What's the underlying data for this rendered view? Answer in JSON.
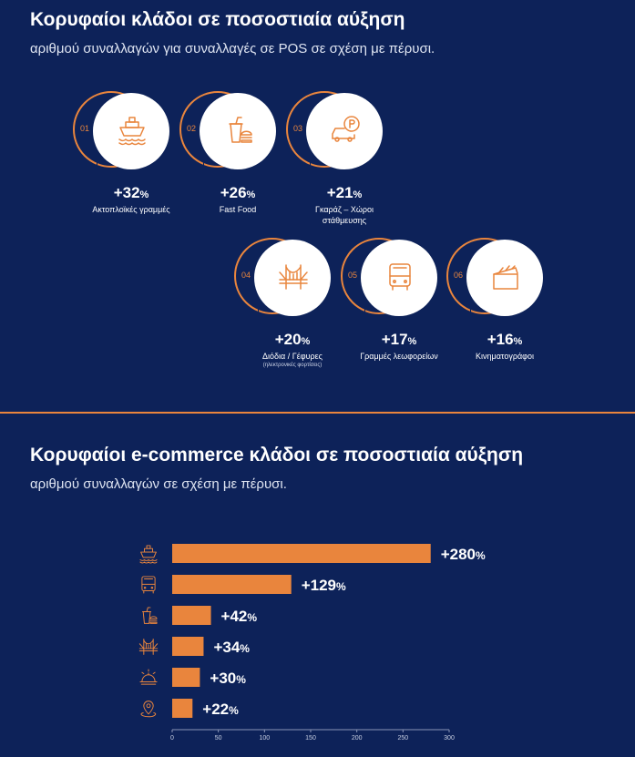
{
  "section1": {
    "title": "Κορυφαίοι κλάδοι σε ποσοστιαία αύξηση",
    "subtitle": "αριθμού συναλλαγών για συναλλαγές σε POS σε σχέση με πέρυσι.",
    "items": [
      {
        "num": "01",
        "pct": "+32",
        "unit": "%",
        "label": "Ακτοπλοϊκές γραμμές",
        "label2": "",
        "note": "",
        "icon": "ship-icon"
      },
      {
        "num": "02",
        "pct": "+26",
        "unit": "%",
        "label": "Fast Food",
        "label2": "",
        "note": "",
        "icon": "fast-food-icon"
      },
      {
        "num": "03",
        "pct": "+21",
        "unit": "%",
        "label": "Γκαράζ – Χώροι",
        "label2": "στάθμευσης",
        "note": "",
        "icon": "parking-car-icon"
      },
      {
        "num": "04",
        "pct": "+20",
        "unit": "%",
        "label": "Διόδια / Γέφυρες",
        "label2": "",
        "note": "(ηλεκτρονικές φορτίσεις)",
        "icon": "bridge-icon"
      },
      {
        "num": "05",
        "pct": "+17",
        "unit": "%",
        "label": "Γραμμές λεωφορείων",
        "label2": "",
        "note": "",
        "icon": "bus-icon"
      },
      {
        "num": "06",
        "pct": "+16",
        "unit": "%",
        "label": "Κινηματογράφοι",
        "label2": "",
        "note": "",
        "icon": "clapperboard-icon"
      }
    ]
  },
  "section2": {
    "title": "Κορυφαίοι e-commerce κλάδοι σε ποσοστιαία αύξηση",
    "subtitle": "αριθμού συναλλαγών σε σχέση με πέρυσι."
  },
  "chart_data": {
    "type": "bar",
    "orientation": "horizontal",
    "categories": [
      "ship-icon",
      "bus-icon",
      "fast-food-icon",
      "bridge-icon",
      "food-cloche-icon",
      "location-pin-icon"
    ],
    "values": [
      280,
      129,
      42,
      34,
      30,
      22
    ],
    "data_labels": [
      "+280",
      "+129",
      "+42",
      "+34",
      "+30",
      "+22"
    ],
    "label_unit": "%",
    "xlim": [
      0,
      300
    ],
    "xticks": [
      0,
      50,
      100,
      150,
      200,
      250,
      300
    ],
    "grid": false,
    "bar_color": "#e9853d"
  },
  "colors": {
    "background": "#0d2259",
    "accent": "#e9853d",
    "white": "#ffffff"
  }
}
